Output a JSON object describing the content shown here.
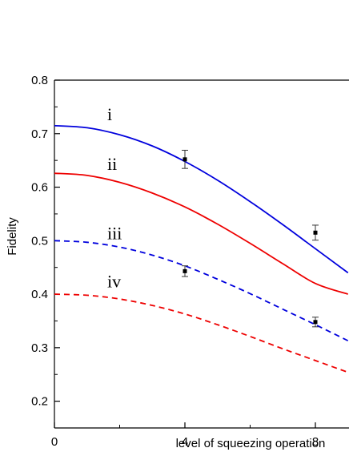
{
  "chart_data": {
    "type": "line",
    "xlabel": "level of squeezing operation",
    "ylabel": "Fidelity",
    "xlim": [
      0,
      9
    ],
    "ylim": [
      0.15,
      0.8
    ],
    "x_ticks": [
      0,
      4,
      8
    ],
    "y_ticks": [
      0.2,
      0.3,
      0.4,
      0.5,
      0.6,
      0.7,
      0.8
    ],
    "x_tick_labels": [
      "0",
      "4",
      "8"
    ],
    "y_tick_labels": [
      "0.2",
      "0.3",
      "0.4",
      "0.5",
      "0.6",
      "0.7",
      "0.8"
    ],
    "series": [
      {
        "name": "i",
        "color": "#0000dd",
        "dash": "solid",
        "x": [
          0,
          1,
          2,
          3,
          4,
          5,
          6,
          7,
          8,
          9
        ],
        "y": [
          0.715,
          0.711,
          0.698,
          0.677,
          0.648,
          0.613,
          0.573,
          0.53,
          0.485,
          0.44
        ]
      },
      {
        "name": "ii",
        "color": "#ee0000",
        "dash": "solid",
        "x": [
          0,
          1,
          2,
          3,
          4,
          5,
          6,
          7,
          8,
          9
        ],
        "y": [
          0.626,
          0.622,
          0.609,
          0.589,
          0.563,
          0.531,
          0.495,
          0.457,
          0.42,
          0.4
        ]
      },
      {
        "name": "iii",
        "color": "#0000dd",
        "dash": "dashed",
        "x": [
          0,
          1,
          2,
          3,
          4,
          5,
          6,
          7,
          8,
          9
        ],
        "y": [
          0.5,
          0.497,
          0.488,
          0.473,
          0.453,
          0.428,
          0.401,
          0.372,
          0.343,
          0.313
        ]
      },
      {
        "name": "iv",
        "color": "#ee0000",
        "dash": "dashed",
        "x": [
          0,
          1,
          2,
          3,
          4,
          5,
          6,
          7,
          8,
          9
        ],
        "y": [
          0.4,
          0.398,
          0.391,
          0.379,
          0.363,
          0.343,
          0.321,
          0.298,
          0.276,
          0.254
        ]
      }
    ],
    "data_points": [
      {
        "x": 4,
        "y": 0.652,
        "err": 0.017
      },
      {
        "x": 8,
        "y": 0.515,
        "err": 0.014
      },
      {
        "x": 4,
        "y": 0.443,
        "err": 0.01
      },
      {
        "x": 8,
        "y": 0.348,
        "err": 0.009
      }
    ],
    "curve_labels": [
      {
        "text": "i",
        "x": 1.62,
        "y": 0.725
      },
      {
        "text": "ii",
        "x": 1.62,
        "y": 0.632
      },
      {
        "text": "iii",
        "x": 1.62,
        "y": 0.503
      },
      {
        "text": "iv",
        "x": 1.62,
        "y": 0.413
      }
    ]
  }
}
